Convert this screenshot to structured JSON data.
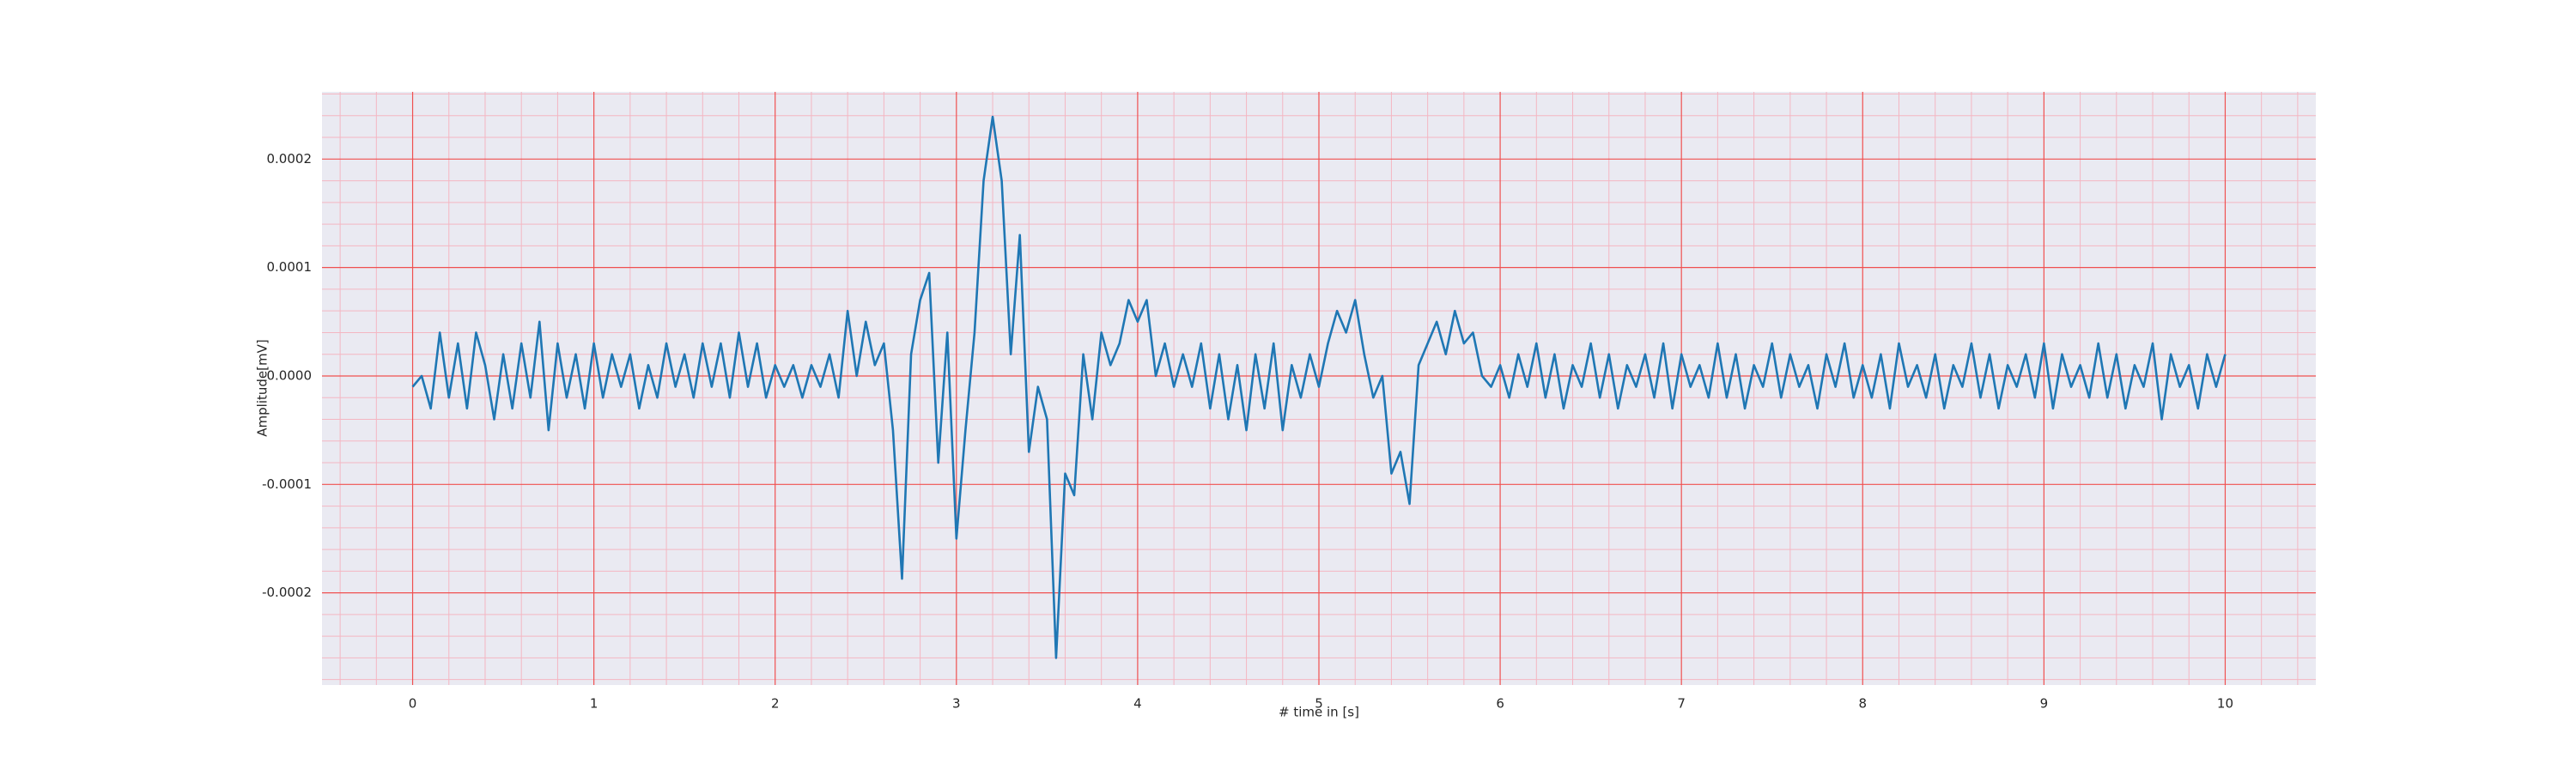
{
  "chart_data": {
    "type": "line",
    "xlabel": "# time in [s]",
    "ylabel": "Amplitude[mV]",
    "color": "#1f77b4",
    "grid": true,
    "minor_grid": true,
    "xlim": [
      -0.5,
      10.5
    ],
    "ylim": [
      -0.000285,
      0.000262
    ],
    "xticks": [
      0,
      1,
      2,
      3,
      4,
      5,
      6,
      7,
      8,
      9,
      10
    ],
    "yticks": [
      -0.0002,
      -0.0001,
      {
        "value": 0,
        "label": "0.0000"
      },
      0.0001,
      0.0002
    ],
    "x": [
      0,
      0.05,
      0.1,
      0.15,
      0.2,
      0.25,
      0.3,
      0.35,
      0.4,
      0.45,
      0.5,
      0.55,
      0.6,
      0.65,
      0.7,
      0.75,
      0.8,
      0.85,
      0.9,
      0.95,
      1,
      1.05,
      1.1,
      1.15,
      1.2,
      1.25,
      1.3,
      1.35,
      1.4,
      1.45,
      1.5,
      1.55,
      1.6,
      1.65,
      1.7,
      1.75,
      1.8,
      1.85,
      1.9,
      1.95,
      2,
      2.05,
      2.1,
      2.15,
      2.2,
      2.25,
      2.3,
      2.35,
      2.4,
      2.45,
      2.5,
      2.55,
      2.6,
      2.65,
      2.7,
      2.75,
      2.8,
      2.85,
      2.9,
      2.95,
      3,
      3.05,
      3.1,
      3.15,
      3.2,
      3.25,
      3.3,
      3.35,
      3.4,
      3.45,
      3.5,
      3.55,
      3.6,
      3.65,
      3.7,
      3.75,
      3.8,
      3.85,
      3.9,
      3.95,
      4,
      4.05,
      4.1,
      4.15,
      4.2,
      4.25,
      4.3,
      4.35,
      4.4,
      4.45,
      4.5,
      4.55,
      4.6,
      4.65,
      4.7,
      4.75,
      4.8,
      4.85,
      4.9,
      4.95,
      5,
      5.05,
      5.1,
      5.15,
      5.2,
      5.25,
      5.3,
      5.35,
      5.4,
      5.45,
      5.5,
      5.55,
      5.6,
      5.65,
      5.7,
      5.75,
      5.8,
      5.85,
      5.9,
      5.95,
      6,
      6.05,
      6.1,
      6.15,
      6.2,
      6.25,
      6.3,
      6.35,
      6.4,
      6.45,
      6.5,
      6.55,
      6.6,
      6.65,
      6.7,
      6.75,
      6.8,
      6.85,
      6.9,
      6.95,
      7,
      7.05,
      7.1,
      7.15,
      7.2,
      7.25,
      7.3,
      7.35,
      7.4,
      7.45,
      7.5,
      7.55,
      7.6,
      7.65,
      7.7,
      7.75,
      7.8,
      7.85,
      7.9,
      7.95,
      8,
      8.05,
      8.1,
      8.15,
      8.2,
      8.25,
      8.3,
      8.35,
      8.4,
      8.45,
      8.5,
      8.55,
      8.6,
      8.65,
      8.7,
      8.75,
      8.8,
      8.85,
      8.9,
      8.95,
      9,
      9.05,
      9.1,
      9.15,
      9.2,
      9.25,
      9.3,
      9.35,
      9.4,
      9.45,
      9.5,
      9.55,
      9.6,
      9.65,
      9.7,
      9.75,
      9.8,
      9.85,
      9.9,
      9.95,
      10
    ],
    "values": [
      -1e-05,
      0,
      -3e-05,
      4e-05,
      -2e-05,
      3e-05,
      -3e-05,
      4e-05,
      1e-05,
      -4e-05,
      2e-05,
      -3e-05,
      3e-05,
      -2e-05,
      5e-05,
      -5e-05,
      3e-05,
      -2e-05,
      2e-05,
      -3e-05,
      3e-05,
      -2e-05,
      2e-05,
      -1e-05,
      2e-05,
      -3e-05,
      1e-05,
      -2e-05,
      3e-05,
      -1e-05,
      2e-05,
      -2e-05,
      3e-05,
      -1e-05,
      3e-05,
      -2e-05,
      4e-05,
      -1e-05,
      3e-05,
      -2e-05,
      1e-05,
      -1e-05,
      1e-05,
      -2e-05,
      1e-05,
      -1e-05,
      2e-05,
      -2e-05,
      6e-05,
      0,
      5e-05,
      1e-05,
      3e-05,
      -5e-05,
      -0.000187,
      2e-05,
      7e-05,
      9.5e-05,
      -8e-05,
      4e-05,
      -0.00015,
      -5e-05,
      4e-05,
      0.00018,
      0.000239,
      0.00018,
      2e-05,
      0.00013,
      -7e-05,
      -1e-05,
      -4e-05,
      -0.00026,
      -9e-05,
      -0.00011,
      2e-05,
      -4e-05,
      4e-05,
      1e-05,
      3e-05,
      7e-05,
      5e-05,
      7e-05,
      0,
      3e-05,
      -1e-05,
      2e-05,
      -1e-05,
      3e-05,
      -3e-05,
      2e-05,
      -4e-05,
      1e-05,
      -5e-05,
      2e-05,
      -3e-05,
      3e-05,
      -5e-05,
      1e-05,
      -2e-05,
      2e-05,
      -1e-05,
      3e-05,
      6e-05,
      4e-05,
      7e-05,
      2e-05,
      -2e-05,
      0,
      -9e-05,
      -7e-05,
      -0.000118,
      1e-05,
      3e-05,
      5e-05,
      2e-05,
      6e-05,
      3e-05,
      4e-05,
      0,
      -1e-05,
      1e-05,
      -2e-05,
      2e-05,
      -1e-05,
      3e-05,
      -2e-05,
      2e-05,
      -3e-05,
      1e-05,
      -1e-05,
      3e-05,
      -2e-05,
      2e-05,
      -3e-05,
      1e-05,
      -1e-05,
      2e-05,
      -2e-05,
      3e-05,
      -3e-05,
      2e-05,
      -1e-05,
      1e-05,
      -2e-05,
      3e-05,
      -2e-05,
      2e-05,
      -3e-05,
      1e-05,
      -1e-05,
      3e-05,
      -2e-05,
      2e-05,
      -1e-05,
      1e-05,
      -3e-05,
      2e-05,
      -1e-05,
      3e-05,
      -2e-05,
      1e-05,
      -2e-05,
      2e-05,
      -3e-05,
      3e-05,
      -1e-05,
      1e-05,
      -2e-05,
      2e-05,
      -3e-05,
      1e-05,
      -1e-05,
      3e-05,
      -2e-05,
      2e-05,
      -3e-05,
      1e-05,
      -1e-05,
      2e-05,
      -2e-05,
      3e-05,
      -3e-05,
      2e-05,
      -1e-05,
      1e-05,
      -2e-05,
      3e-05,
      -2e-05,
      2e-05,
      -3e-05,
      1e-05,
      -1e-05,
      3e-05,
      -4e-05,
      2e-05,
      -1e-05,
      1e-05,
      -3e-05,
      2e-05,
      -1e-05,
      2e-05
    ]
  }
}
